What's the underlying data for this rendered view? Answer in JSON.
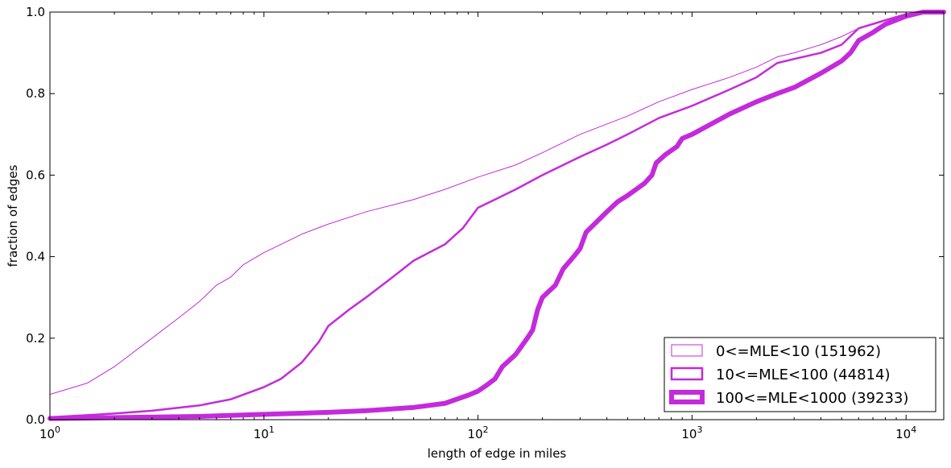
{
  "chart_data": {
    "type": "line",
    "subtype": "cumulative-distribution",
    "title": "",
    "xlabel": "length of edge in miles",
    "ylabel": "fraction of edges",
    "xscale": "log",
    "xlim": [
      1,
      15000
    ],
    "ylim": [
      0,
      1
    ],
    "x_ticks": [
      {
        "value": 1,
        "base": "10",
        "exp": "0"
      },
      {
        "value": 10,
        "base": "10",
        "exp": "1"
      },
      {
        "value": 100,
        "base": "10",
        "exp": "2"
      },
      {
        "value": 1000,
        "base": "10",
        "exp": "3"
      },
      {
        "value": 10000,
        "base": "10",
        "exp": "4"
      }
    ],
    "y_ticks": [
      "0.0",
      "0.2",
      "0.4",
      "0.6",
      "0.8",
      "1.0"
    ],
    "grid": false,
    "legend_position": "bottom-right",
    "color": "#c42adc",
    "series": [
      {
        "name": "0<=MLE<10 (151962)",
        "line_width": "thin",
        "points": [
          [
            1,
            0.062
          ],
          [
            1.5,
            0.09
          ],
          [
            2,
            0.13
          ],
          [
            3,
            0.2
          ],
          [
            4,
            0.25
          ],
          [
            5,
            0.29
          ],
          [
            6,
            0.33
          ],
          [
            7,
            0.35
          ],
          [
            8,
            0.38
          ],
          [
            10,
            0.41
          ],
          [
            12,
            0.43
          ],
          [
            15,
            0.455
          ],
          [
            20,
            0.48
          ],
          [
            30,
            0.51
          ],
          [
            50,
            0.54
          ],
          [
            70,
            0.565
          ],
          [
            100,
            0.595
          ],
          [
            150,
            0.625
          ],
          [
            200,
            0.655
          ],
          [
            300,
            0.7
          ],
          [
            500,
            0.745
          ],
          [
            700,
            0.78
          ],
          [
            1000,
            0.81
          ],
          [
            1500,
            0.84
          ],
          [
            2000,
            0.865
          ],
          [
            2500,
            0.89
          ],
          [
            3000,
            0.9
          ],
          [
            4000,
            0.92
          ],
          [
            5000,
            0.94
          ],
          [
            6000,
            0.96
          ],
          [
            8000,
            0.98
          ],
          [
            10000,
            0.99
          ],
          [
            12000,
            1.0
          ],
          [
            15000,
            1.0
          ]
        ]
      },
      {
        "name": "10<=MLE<100 (44814)",
        "line_width": "medium",
        "points": [
          [
            1,
            0.006
          ],
          [
            2,
            0.015
          ],
          [
            3,
            0.022
          ],
          [
            5,
            0.035
          ],
          [
            7,
            0.05
          ],
          [
            10,
            0.08
          ],
          [
            12,
            0.1
          ],
          [
            15,
            0.14
          ],
          [
            18,
            0.19
          ],
          [
            20,
            0.23
          ],
          [
            25,
            0.27
          ],
          [
            30,
            0.3
          ],
          [
            40,
            0.35
          ],
          [
            50,
            0.39
          ],
          [
            70,
            0.43
          ],
          [
            85,
            0.47
          ],
          [
            100,
            0.52
          ],
          [
            120,
            0.54
          ],
          [
            150,
            0.565
          ],
          [
            200,
            0.6
          ],
          [
            300,
            0.645
          ],
          [
            400,
            0.675
          ],
          [
            500,
            0.7
          ],
          [
            700,
            0.74
          ],
          [
            1000,
            0.77
          ],
          [
            1500,
            0.81
          ],
          [
            2000,
            0.84
          ],
          [
            2500,
            0.875
          ],
          [
            3000,
            0.885
          ],
          [
            4000,
            0.9
          ],
          [
            5000,
            0.92
          ],
          [
            6000,
            0.96
          ],
          [
            8000,
            0.98
          ],
          [
            10000,
            0.995
          ],
          [
            15000,
            1.0
          ]
        ]
      },
      {
        "name": "100<=MLE<1000 (39233)",
        "line_width": "thick",
        "points": [
          [
            1,
            0.003
          ],
          [
            5,
            0.008
          ],
          [
            10,
            0.013
          ],
          [
            20,
            0.018
          ],
          [
            30,
            0.022
          ],
          [
            50,
            0.03
          ],
          [
            70,
            0.04
          ],
          [
            90,
            0.06
          ],
          [
            100,
            0.07
          ],
          [
            110,
            0.085
          ],
          [
            120,
            0.1
          ],
          [
            130,
            0.13
          ],
          [
            150,
            0.16
          ],
          [
            170,
            0.2
          ],
          [
            180,
            0.22
          ],
          [
            190,
            0.27
          ],
          [
            200,
            0.3
          ],
          [
            230,
            0.33
          ],
          [
            250,
            0.37
          ],
          [
            280,
            0.4
          ],
          [
            300,
            0.42
          ],
          [
            320,
            0.46
          ],
          [
            350,
            0.48
          ],
          [
            400,
            0.51
          ],
          [
            450,
            0.535
          ],
          [
            500,
            0.55
          ],
          [
            600,
            0.58
          ],
          [
            650,
            0.6
          ],
          [
            680,
            0.63
          ],
          [
            750,
            0.65
          ],
          [
            850,
            0.67
          ],
          [
            900,
            0.69
          ],
          [
            1000,
            0.7
          ],
          [
            1500,
            0.75
          ],
          [
            2000,
            0.78
          ],
          [
            2500,
            0.8
          ],
          [
            3000,
            0.815
          ],
          [
            4000,
            0.85
          ],
          [
            5000,
            0.88
          ],
          [
            5500,
            0.9
          ],
          [
            6000,
            0.93
          ],
          [
            7000,
            0.95
          ],
          [
            8000,
            0.97
          ],
          [
            10000,
            0.99
          ],
          [
            12000,
            1.0
          ],
          [
            15000,
            1.0
          ]
        ]
      }
    ]
  }
}
